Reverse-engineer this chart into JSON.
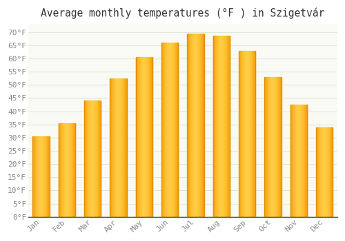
{
  "title": "Average monthly temperatures (°F ) in Szigetvár",
  "months": [
    "Jan",
    "Feb",
    "Mar",
    "Apr",
    "May",
    "Jun",
    "Jul",
    "Aug",
    "Sep",
    "Oct",
    "Nov",
    "Dec"
  ],
  "values": [
    30.5,
    35.5,
    44.0,
    52.5,
    60.5,
    66.0,
    69.5,
    68.5,
    63.0,
    53.0,
    42.5,
    34.0
  ],
  "bar_color_center": "#FFB833",
  "bar_color_edge": "#F59A00",
  "background_color": "#FFFFFF",
  "plot_bg_color": "#FAFAF5",
  "grid_color": "#E0E0D8",
  "text_color": "#888888",
  "title_color": "#333333",
  "axis_color": "#333333",
  "ylim": [
    0,
    73
  ],
  "yticks": [
    0,
    5,
    10,
    15,
    20,
    25,
    30,
    35,
    40,
    45,
    50,
    55,
    60,
    65,
    70
  ],
  "title_fontsize": 10.5,
  "tick_fontsize": 8,
  "font_family": "monospace",
  "bar_width": 0.65
}
